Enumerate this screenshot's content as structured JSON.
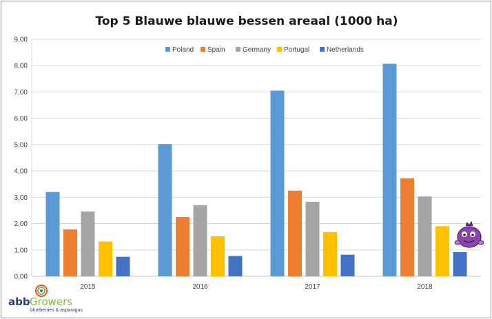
{
  "chart_data": {
    "type": "bar",
    "title": "Top 5 Blauwe blauwe bessen areaal (1000 ha)",
    "xlabel": "",
    "ylabel": "",
    "categories": [
      "2015",
      "2016",
      "2017",
      "2018"
    ],
    "ylim": [
      0,
      9
    ],
    "yticks": [
      "0,00",
      "1,00",
      "2,00",
      "3,00",
      "4,00",
      "5,00",
      "6,00",
      "7,00",
      "8,00",
      "9,00"
    ],
    "grid": "horizontal",
    "legend_position": "top",
    "series": [
      {
        "name": "Poland",
        "color": "#5b9bd5",
        "values": [
          3.2,
          5.02,
          7.05,
          8.07
        ]
      },
      {
        "name": "Spain",
        "color": "#ed7d31",
        "values": [
          1.78,
          2.25,
          3.25,
          3.72
        ]
      },
      {
        "name": "Germany",
        "color": "#a5a5a5",
        "values": [
          2.46,
          2.7,
          2.83,
          3.03
        ]
      },
      {
        "name": "Portugal",
        "color": "#ffc000",
        "values": [
          1.32,
          1.52,
          1.68,
          1.9
        ]
      },
      {
        "name": "Netherlands",
        "color": "#4472c4",
        "values": [
          0.74,
          0.77,
          0.82,
          0.92
        ]
      }
    ]
  },
  "logo": {
    "abb": "abb",
    "growers": "Growers",
    "tagline": "blueberries & asparagus"
  },
  "mascot_icon": "blueberry-mascot-icon"
}
